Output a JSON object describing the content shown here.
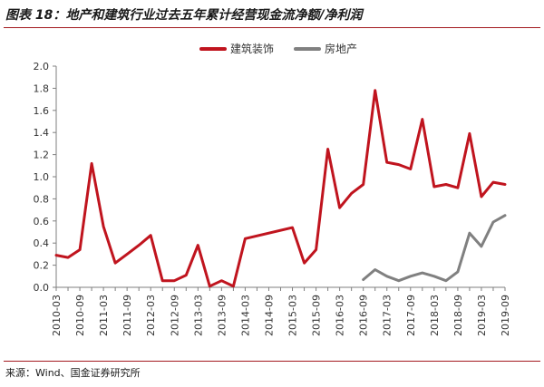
{
  "figure": {
    "title": "图表 18：地产和建筑行业过去五年累计经营现金流净额/净利润",
    "source": "来源：Wind、国金证券研究所"
  },
  "colors": {
    "title_rule": "#a31a1f",
    "axis": "#7f7f7f"
  },
  "chart_data": {
    "type": "line",
    "title": "",
    "xlabel": "",
    "ylabel": "",
    "ylim": [
      0.0,
      2.0
    ],
    "yticks": [
      "0.0",
      "0.2",
      "0.4",
      "0.6",
      "0.8",
      "1.0",
      "1.2",
      "1.4",
      "1.6",
      "1.8",
      "2.0"
    ],
    "x": [
      "2010-03",
      "2010-06",
      "2010-09",
      "2010-12",
      "2011-03",
      "2011-06",
      "2011-09",
      "2011-12",
      "2012-03",
      "2012-06",
      "2012-09",
      "2012-12",
      "2013-03",
      "2013-06",
      "2013-09",
      "2013-12",
      "2014-03",
      "2014-06",
      "2014-09",
      "2014-12",
      "2015-03",
      "2015-06",
      "2015-09",
      "2015-12",
      "2016-03",
      "2016-06",
      "2016-09",
      "2016-12",
      "2017-03",
      "2017-06",
      "2017-09",
      "2017-12",
      "2018-03",
      "2018-06",
      "2018-09",
      "2018-12",
      "2019-03",
      "2019-06",
      "2019-09"
    ],
    "xtick_labels": [
      "2010-03",
      "2010-09",
      "2011-03",
      "2011-09",
      "2012-03",
      "2012-09",
      "2013-03",
      "2013-09",
      "2014-03",
      "2014-09",
      "2015-03",
      "2015-09",
      "2016-03",
      "2016-09",
      "2017-03",
      "2017-09",
      "2018-03",
      "2018-09",
      "2019-03",
      "2019-09"
    ],
    "grid": false,
    "legend_position": "top-center",
    "series": [
      {
        "name": "建筑装饰",
        "color": "#c0141e",
        "values": [
          0.29,
          0.27,
          0.34,
          1.12,
          0.55,
          0.22,
          0.3,
          0.38,
          0.47,
          0.06,
          0.06,
          0.11,
          0.38,
          0.01,
          0.06,
          0.01,
          0.44,
          null,
          null,
          null,
          0.54,
          0.22,
          0.34,
          1.25,
          0.72,
          0.85,
          0.93,
          1.78,
          1.13,
          1.11,
          1.07,
          1.52,
          0.91,
          0.93,
          0.9,
          1.39,
          0.82,
          0.95,
          0.93
        ]
      },
      {
        "name": "房地产",
        "color": "#808080",
        "values": [
          null,
          null,
          null,
          null,
          null,
          null,
          null,
          null,
          null,
          null,
          null,
          null,
          null,
          null,
          null,
          null,
          null,
          null,
          null,
          null,
          null,
          null,
          null,
          null,
          null,
          null,
          0.07,
          0.16,
          0.1,
          0.06,
          0.1,
          0.13,
          0.1,
          0.06,
          0.14,
          0.49,
          0.37,
          0.59,
          0.65
        ]
      }
    ]
  }
}
